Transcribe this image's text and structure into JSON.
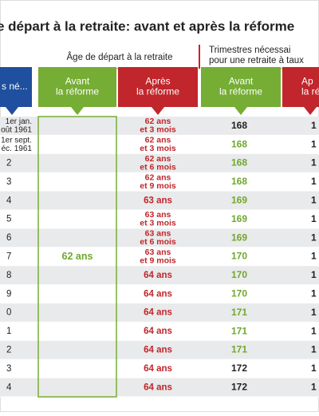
{
  "title": "e départ à la retraite: avant et après la réforme",
  "group_headers": {
    "age": "Âge de départ à la retraite",
    "quarters": [
      "Trimestres nécessai",
      "pour une retraite à taux"
    ]
  },
  "column_headers": [
    [
      "s né..."
    ],
    [
      "Avant",
      "la réforme"
    ],
    [
      "Après",
      "la réforme"
    ],
    [
      "Avant",
      "la réforme"
    ],
    [
      "Ap",
      "la ré"
    ]
  ],
  "age_before": "62 ans",
  "rows": [
    {
      "born": [
        "1er jan.",
        "oût 1961"
      ],
      "age_after": [
        "62 ans",
        "et 3 mois"
      ],
      "quarters_before": "168",
      "quarters_color": "#222",
      "quarters_after": "1"
    },
    {
      "born": [
        "1er sept.",
        "éc. 1961"
      ],
      "age_after": [
        "62 ans",
        "et 3 mois"
      ],
      "quarters_before": "168",
      "quarters_color": "#6fa82e",
      "quarters_after": "1"
    },
    {
      "born": [
        "2"
      ],
      "age_after": [
        "62 ans",
        "et 6 mois"
      ],
      "quarters_before": "168",
      "quarters_color": "#6fa82e",
      "quarters_after": "1"
    },
    {
      "born": [
        "3"
      ],
      "age_after": [
        "62 ans",
        "et 9 mois"
      ],
      "quarters_before": "168",
      "quarters_color": "#6fa82e",
      "quarters_after": "1"
    },
    {
      "born": [
        "4"
      ],
      "age_after": [
        "63 ans"
      ],
      "quarters_before": "169",
      "quarters_color": "#6fa82e",
      "quarters_after": "1"
    },
    {
      "born": [
        "5"
      ],
      "age_after": [
        "63 ans",
        "et 3 mois"
      ],
      "quarters_before": "169",
      "quarters_color": "#6fa82e",
      "quarters_after": "1"
    },
    {
      "born": [
        "6"
      ],
      "age_after": [
        "63 ans",
        "et 6 mois"
      ],
      "quarters_before": "169",
      "quarters_color": "#6fa82e",
      "quarters_after": "1"
    },
    {
      "born": [
        "7"
      ],
      "age_after": [
        "63 ans",
        "et 9 mois"
      ],
      "quarters_before": "170",
      "quarters_color": "#6fa82e",
      "quarters_after": "1"
    },
    {
      "born": [
        "8"
      ],
      "age_after": [
        "64 ans"
      ],
      "quarters_before": "170",
      "quarters_color": "#6fa82e",
      "quarters_after": "1"
    },
    {
      "born": [
        "9"
      ],
      "age_after": [
        "64 ans"
      ],
      "quarters_before": "170",
      "quarters_color": "#6fa82e",
      "quarters_after": "1"
    },
    {
      "born": [
        "0"
      ],
      "age_after": [
        "64 ans"
      ],
      "quarters_before": "171",
      "quarters_color": "#6fa82e",
      "quarters_after": "1"
    },
    {
      "born": [
        "1"
      ],
      "age_after": [
        "64 ans"
      ],
      "quarters_before": "171",
      "quarters_color": "#6fa82e",
      "quarters_after": "1"
    },
    {
      "born": [
        "2"
      ],
      "age_after": [
        "64 ans"
      ],
      "quarters_before": "171",
      "quarters_color": "#6fa82e",
      "quarters_after": "1"
    },
    {
      "born": [
        "3"
      ],
      "age_after": [
        "64 ans"
      ],
      "quarters_before": "172",
      "quarters_color": "#222",
      "quarters_after": "1"
    },
    {
      "born": [
        "4"
      ],
      "age_after": [
        "64 ans"
      ],
      "quarters_before": "172",
      "quarters_color": "#222",
      "quarters_after": "1"
    }
  ]
}
